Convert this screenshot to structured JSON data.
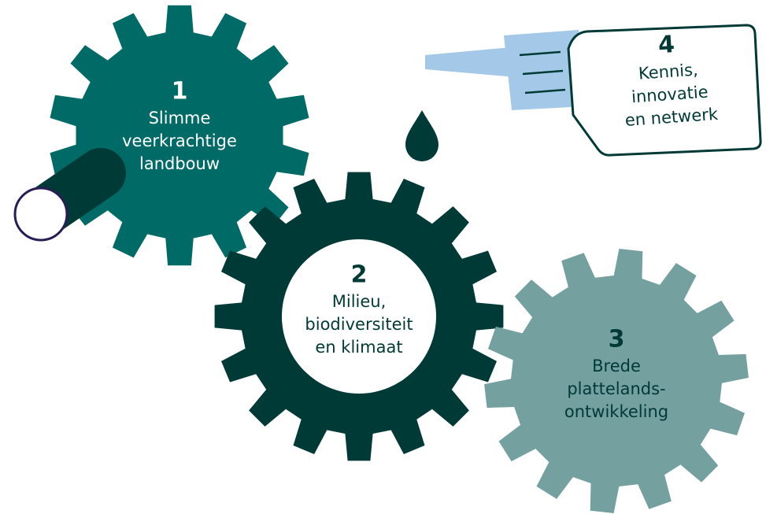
{
  "nodes": [
    {
      "number": "1",
      "label": [
        "Slimme",
        "veerkrachtige",
        "landbouw"
      ]
    },
    {
      "number": "2",
      "label": [
        "Milieu,",
        "biodiversiteit",
        "en klimaat"
      ]
    },
    {
      "number": "3",
      "label": [
        "Brede",
        "plattelands-",
        "ontwikkeling"
      ]
    },
    {
      "number": "4",
      "label": [
        "Kennis,",
        "innovatie",
        "en netwerk"
      ]
    }
  ]
}
